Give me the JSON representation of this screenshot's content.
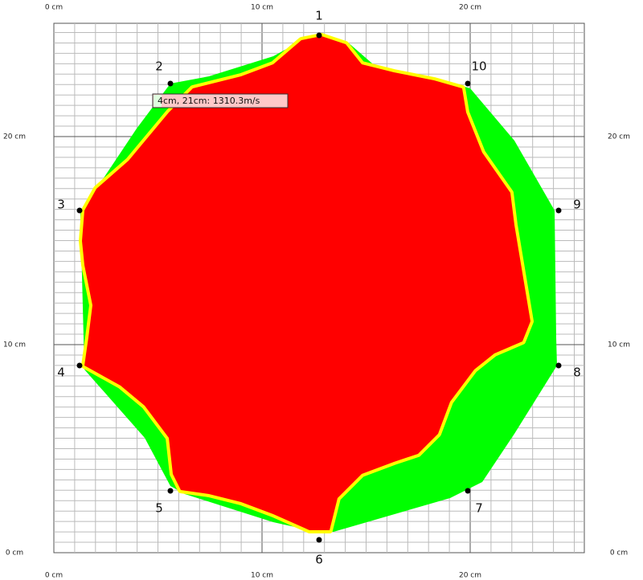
{
  "axis_labels": {
    "top": [
      "0 cm",
      "10 cm",
      "20 cm"
    ],
    "bottom": [
      "0 cm",
      "10 cm",
      "20 cm"
    ],
    "left": [
      "20 cm",
      "10 cm",
      "0 cm"
    ],
    "right": [
      "20 cm",
      "10 cm",
      "0 cm"
    ]
  },
  "sensors": [
    {
      "label": "1"
    },
    {
      "label": "2"
    },
    {
      "label": "3"
    },
    {
      "label": "4"
    },
    {
      "label": "5"
    },
    {
      "label": "6"
    },
    {
      "label": "7"
    },
    {
      "label": "8"
    },
    {
      "label": "9"
    },
    {
      "label": "10"
    }
  ],
  "tooltip": "4cm, 21cm: 1310.3m/s"
}
